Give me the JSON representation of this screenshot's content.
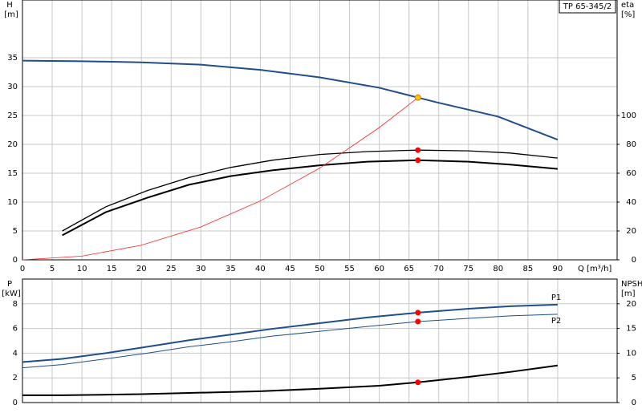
{
  "chart_data": [
    {
      "type": "line",
      "y_label": "H",
      "y_unit": "[m]",
      "y2_label": "eta",
      "y2_unit": "[%]",
      "x_label": "Q [m³/h]",
      "annotation": "TP 65-345/2",
      "xlim": [
        0,
        100
      ],
      "xticks": [
        0,
        5,
        10,
        15,
        20,
        25,
        30,
        35,
        40,
        45,
        50,
        55,
        60,
        65,
        70,
        75,
        80,
        85,
        90
      ],
      "ylim": [
        0,
        45
      ],
      "yticks": [
        0,
        5,
        10,
        15,
        20,
        25,
        30,
        35
      ],
      "y2lim": [
        0,
        180
      ],
      "y2ticks": [
        0,
        20,
        40,
        60,
        80,
        100
      ],
      "grid": true,
      "series": [
        {
          "color": "#1f4e8c",
          "width": 2,
          "x": [
            0,
            10,
            20,
            30,
            40,
            50,
            60,
            66.5,
            70,
            80,
            90
          ],
          "values": [
            34.5,
            34.4,
            34.2,
            33.8,
            32.9,
            31.6,
            29.8,
            28.1,
            27.2,
            24.8,
            20.8
          ]
        },
        {
          "color": "#000000",
          "width": 1.3,
          "axis": "y2",
          "x": [
            6.7,
            14,
            21,
            28,
            35,
            42,
            50,
            58,
            66.5,
            75,
            82,
            90
          ],
          "values": [
            20,
            36.7,
            48,
            57,
            64,
            69,
            73,
            75,
            76,
            75.5,
            74,
            70.5
          ]
        },
        {
          "color": "#000000",
          "width": 2,
          "axis": "y2",
          "x": [
            6.7,
            14,
            21,
            28,
            35,
            42,
            50,
            58,
            66.5,
            75,
            82,
            90
          ],
          "values": [
            17,
            33,
            43,
            52,
            58,
            62,
            65.5,
            68,
            69,
            68,
            66,
            63
          ]
        },
        {
          "color": "#ff2020",
          "width": 0.8,
          "x": [
            0,
            10,
            20,
            30,
            40,
            50,
            60,
            66.5
          ],
          "values": [
            0,
            0.64,
            2.54,
            5.7,
            10.2,
            15.9,
            22.9,
            28.1
          ]
        }
      ],
      "markers": [
        {
          "x": 66.5,
          "y": 28.1,
          "color": "#f5c400"
        },
        {
          "x": 66.5,
          "y": 76,
          "axis": "y2",
          "color": "#ff0000"
        },
        {
          "x": 66.5,
          "y": 69,
          "axis": "y2",
          "color": "#ff0000"
        }
      ]
    },
    {
      "type": "line",
      "y_label": "P",
      "y_unit": "[kW]",
      "y2_label": "NPSH",
      "y2_unit": "[m]",
      "xlim": [
        0,
        100
      ],
      "ylim": [
        0,
        10
      ],
      "yticks": [
        0,
        2,
        4,
        6,
        8
      ],
      "y2lim": [
        0,
        25
      ],
      "y2ticks": [
        0,
        5,
        10,
        15,
        20
      ],
      "grid": true,
      "series": [
        {
          "name": "P1",
          "color": "#1f4e8c",
          "width": 2,
          "x": [
            0,
            6.7,
            14,
            21,
            28,
            35,
            42,
            50,
            58,
            66.5,
            75,
            82,
            90
          ],
          "values": [
            3.28,
            3.54,
            4.0,
            4.52,
            5.05,
            5.5,
            5.97,
            6.43,
            6.89,
            7.28,
            7.6,
            7.8,
            7.93
          ]
        },
        {
          "name": "P2",
          "color": "#1f4e8c",
          "width": 1,
          "x": [
            0,
            6.7,
            14,
            21,
            28,
            35,
            42,
            50,
            58,
            66.5,
            75,
            82,
            90
          ],
          "values": [
            2.82,
            3.08,
            3.54,
            4.0,
            4.52,
            4.92,
            5.38,
            5.77,
            6.16,
            6.56,
            6.82,
            7.02,
            7.15
          ]
        },
        {
          "color": "#000000",
          "width": 2,
          "axis": "y2",
          "x": [
            0,
            6.7,
            20,
            30,
            40,
            50,
            60,
            66.5,
            75,
            82,
            90
          ],
          "values": [
            1.48,
            1.48,
            1.7,
            2.0,
            2.3,
            2.8,
            3.4,
            4.1,
            5.2,
            6.2,
            7.5
          ]
        }
      ],
      "markers": [
        {
          "x": 66.5,
          "y": 7.28,
          "color": "#ff0000"
        },
        {
          "x": 66.5,
          "y": 6.56,
          "color": "#ff0000"
        },
        {
          "x": 66.5,
          "y": 4.1,
          "axis": "y2",
          "color": "#ff0000"
        }
      ]
    }
  ]
}
